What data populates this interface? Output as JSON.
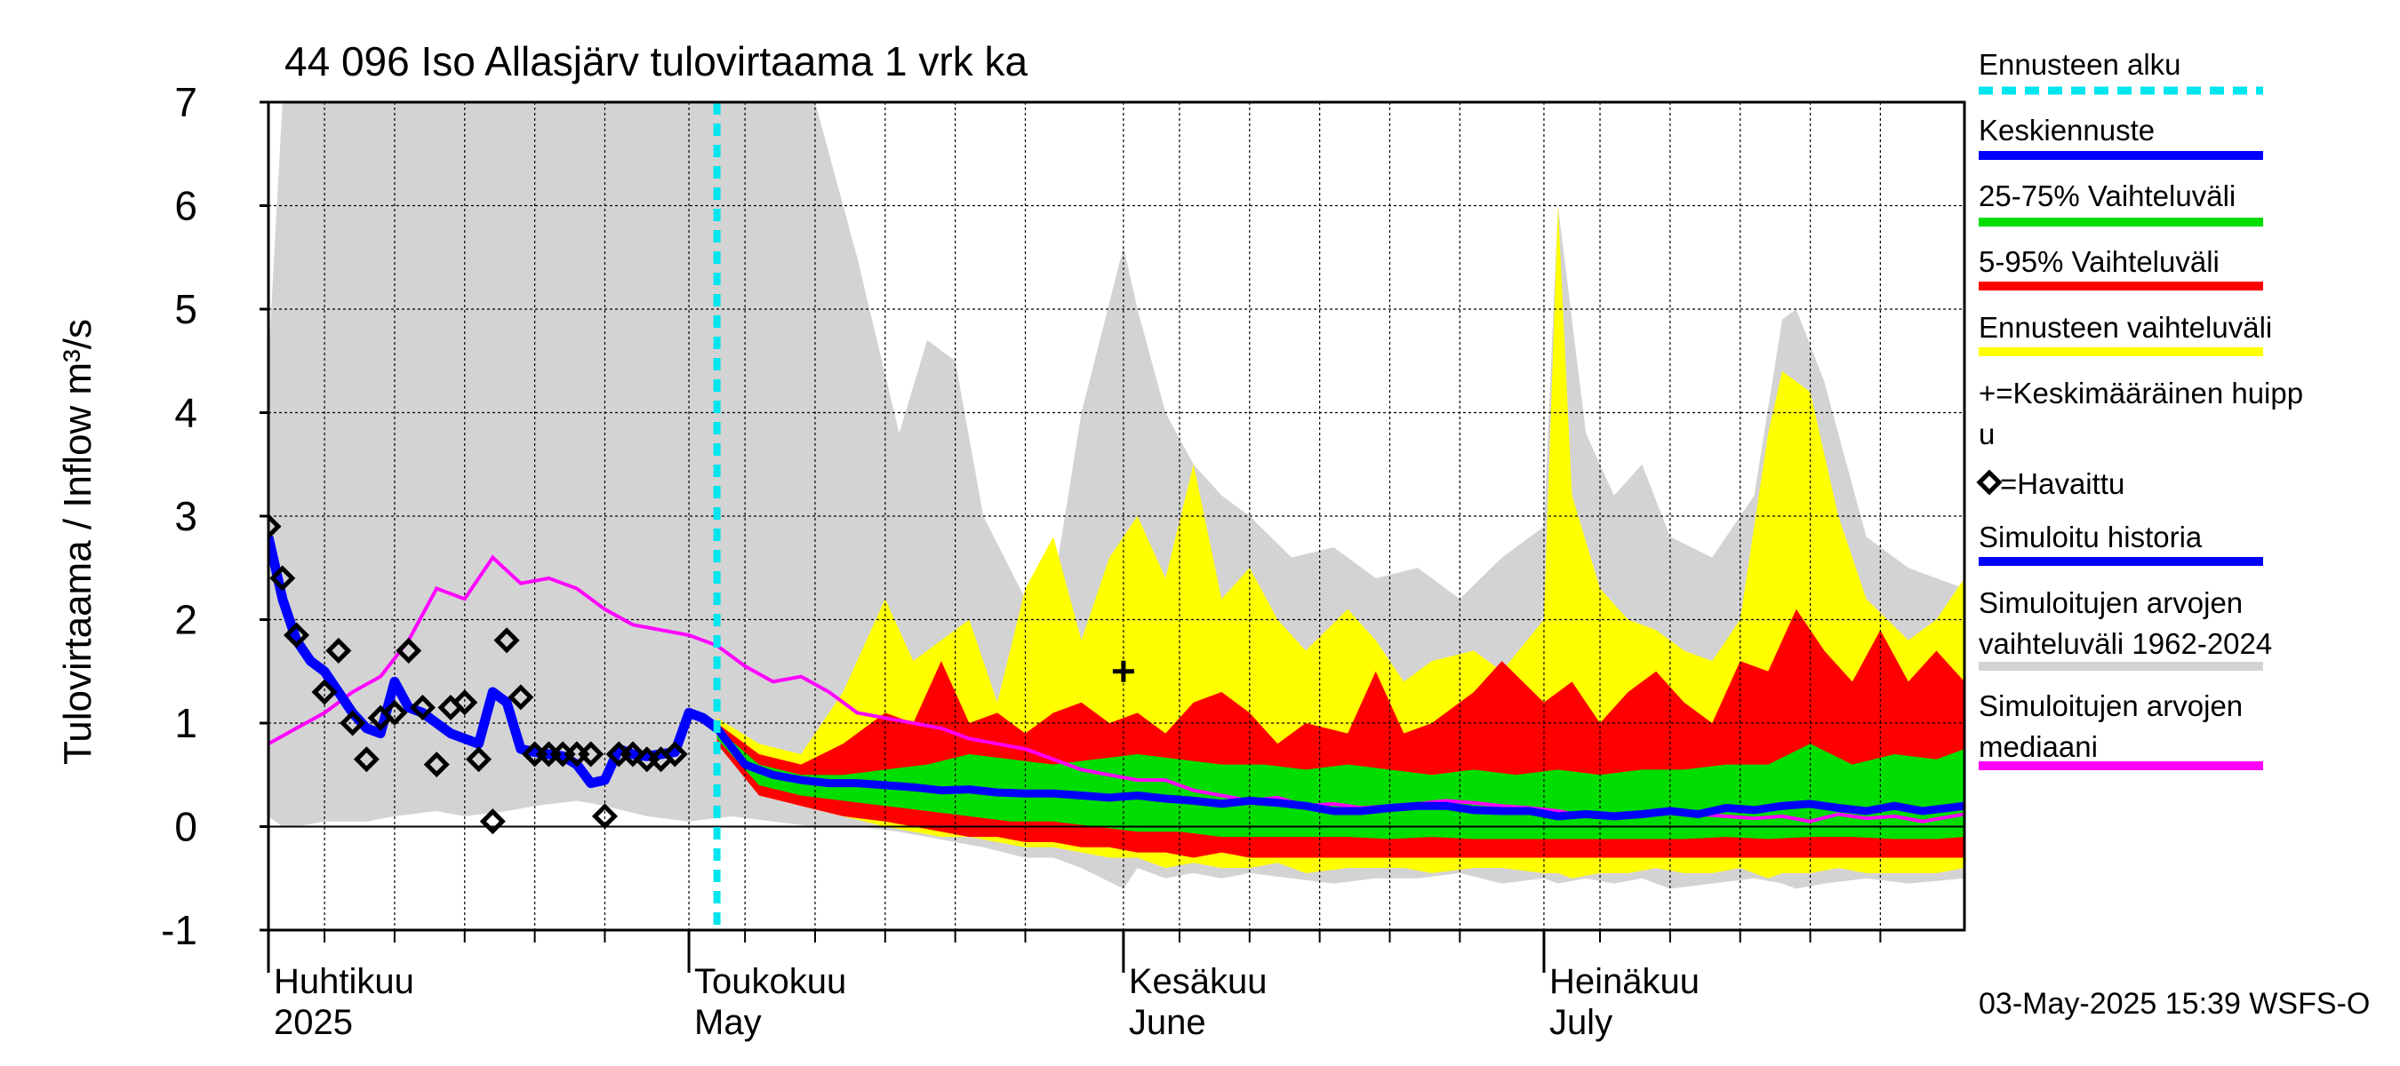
{
  "chart_data": {
    "type": "area",
    "title": "44 096 Iso Allasjärv tulovirtaama 1 vrk ka",
    "ylabel": "Tulovirtaama / Inflow    m³/s",
    "ylim": [
      -1,
      7
    ],
    "y_ticks": [
      -1,
      0,
      1,
      2,
      3,
      4,
      5,
      6,
      7
    ],
    "x_range": [
      "2025-04-01",
      "2025-07-31"
    ],
    "x_grid_dates": [
      "2025-04-05",
      "2025-04-10",
      "2025-04-15",
      "2025-04-20",
      "2025-04-25",
      "2025-05-01",
      "2025-05-05",
      "2025-05-10",
      "2025-05-15",
      "2025-05-20",
      "2025-05-25",
      "2025-06-01",
      "2025-06-05",
      "2025-06-10",
      "2025-06-15",
      "2025-06-20",
      "2025-06-25",
      "2025-07-01",
      "2025-07-05",
      "2025-07-10",
      "2025-07-15",
      "2025-07-20",
      "2025-07-25"
    ],
    "month_labels": [
      {
        "fi": "Huhtikuu",
        "en": "2025",
        "date": "2025-04-01"
      },
      {
        "fi": "Toukokuu",
        "en": "May",
        "date": "2025-05-01"
      },
      {
        "fi": "Kesäkuu",
        "en": "June",
        "date": "2025-06-01"
      },
      {
        "fi": "Heinäkuu",
        "en": "July",
        "date": "2025-07-01"
      }
    ],
    "forecast_start": "2025-05-03",
    "grid": true,
    "legend_position": "right",
    "legend": [
      {
        "label": "Ennusteen alku",
        "color": "#00e5ee",
        "style": "dashed"
      },
      {
        "label": "Keskiennuste",
        "color": "#0000ff",
        "style": "line"
      },
      {
        "label": "25-75% Vaihteluväli",
        "color": "#00dd00",
        "style": "line"
      },
      {
        "label": "5-95% Vaihteluväli",
        "color": "#ff0000",
        "style": "line"
      },
      {
        "label": "Ennusteen vaihteluväli",
        "color": "#ffff00",
        "style": "line"
      },
      {
        "label": "+=Keskimääräinen huipp",
        "label2": "u",
        "color": "#000000",
        "style": "none"
      },
      {
        "label": "=Havaittu",
        "color": "#000000",
        "style": "diamond"
      },
      {
        "label": "Simuloitu historia",
        "color": "#0000ff",
        "style": "line"
      },
      {
        "label": "Simuloitujen arvojen",
        "label2": "vaihteluväli 1962-2024",
        "color": "#d3d3d3",
        "style": "line"
      },
      {
        "label": "Simuloitujen arvojen",
        "label2": "mediaani",
        "color": "#ff00ff",
        "style": "line"
      }
    ],
    "footer": "03-May-2025 15:39 WSFS-O",
    "colors": {
      "history_range": "#d3d3d3",
      "forecast_range": "#ffff00",
      "p5_95": "#ff0000",
      "p25_75": "#00dd00",
      "mean_forecast": "#0000ff",
      "simulated_history": "#0000ff",
      "median": "#ff00ff",
      "forecast_start": "#00e5ee"
    },
    "series": {
      "history_range": {
        "x": [
          "2025-04-01",
          "2025-04-02",
          "2025-04-03",
          "2025-04-05",
          "2025-04-08",
          "2025-04-10",
          "2025-04-13",
          "2025-04-15",
          "2025-04-18",
          "2025-04-20",
          "2025-04-23",
          "2025-04-25",
          "2025-04-28",
          "2025-05-01",
          "2025-05-04",
          "2025-05-07",
          "2025-05-10",
          "2025-05-13",
          "2025-05-16",
          "2025-05-18",
          "2025-05-20",
          "2025-05-22",
          "2025-05-25",
          "2025-05-27",
          "2025-05-29",
          "2025-06-01",
          "2025-06-02",
          "2025-06-04",
          "2025-06-06",
          "2025-06-08",
          "2025-06-10",
          "2025-06-13",
          "2025-06-16",
          "2025-06-19",
          "2025-06-22",
          "2025-06-25",
          "2025-06-28",
          "2025-07-01",
          "2025-07-02",
          "2025-07-04",
          "2025-07-06",
          "2025-07-08",
          "2025-07-10",
          "2025-07-13",
          "2025-07-16",
          "2025-07-18",
          "2025-07-19",
          "2025-07-21",
          "2025-07-24",
          "2025-07-27",
          "2025-07-31"
        ],
        "high": [
          4.5,
          7,
          7,
          7,
          7,
          7,
          7,
          7,
          7,
          7,
          7,
          7,
          7,
          7,
          7,
          7,
          7,
          5.5,
          3.8,
          4.7,
          4.5,
          3.0,
          2.2,
          2.3,
          4.0,
          5.6,
          5.0,
          4.0,
          3.5,
          3.2,
          3.0,
          2.6,
          2.7,
          2.4,
          2.5,
          2.2,
          2.6,
          2.9,
          6.0,
          3.8,
          3.2,
          3.5,
          2.8,
          2.6,
          3.2,
          4.9,
          5.0,
          4.3,
          2.8,
          2.5,
          2.3
        ],
        "low": [
          0.1,
          0.0,
          0.0,
          0.05,
          0.05,
          0.1,
          0.15,
          0.1,
          0.15,
          0.2,
          0.25,
          0.2,
          0.1,
          0.05,
          0.1,
          0.05,
          0.0,
          0.0,
          -0.05,
          -0.1,
          -0.15,
          -0.2,
          -0.3,
          -0.3,
          -0.4,
          -0.6,
          -0.4,
          -0.5,
          -0.45,
          -0.5,
          -0.45,
          -0.5,
          -0.55,
          -0.5,
          -0.5,
          -0.45,
          -0.55,
          -0.5,
          -0.55,
          -0.5,
          -0.55,
          -0.5,
          -0.6,
          -0.55,
          -0.5,
          -0.55,
          -0.6,
          -0.55,
          -0.5,
          -0.55,
          -0.5
        ]
      },
      "forecast_range": {
        "x": [
          "2025-05-03",
          "2025-05-06",
          "2025-05-09",
          "2025-05-12",
          "2025-05-15",
          "2025-05-17",
          "2025-05-19",
          "2025-05-21",
          "2025-05-23",
          "2025-05-25",
          "2025-05-27",
          "2025-05-29",
          "2025-05-31",
          "2025-06-02",
          "2025-06-04",
          "2025-06-06",
          "2025-06-08",
          "2025-06-10",
          "2025-06-12",
          "2025-06-14",
          "2025-06-17",
          "2025-06-19",
          "2025-06-21",
          "2025-06-23",
          "2025-06-26",
          "2025-06-28",
          "2025-07-01",
          "2025-07-02",
          "2025-07-03",
          "2025-07-05",
          "2025-07-07",
          "2025-07-09",
          "2025-07-11",
          "2025-07-13",
          "2025-07-15",
          "2025-07-17",
          "2025-07-18",
          "2025-07-20",
          "2025-07-22",
          "2025-07-24",
          "2025-07-27",
          "2025-07-29",
          "2025-07-31"
        ],
        "high": [
          1.05,
          0.8,
          0.7,
          1.3,
          2.2,
          1.6,
          1.8,
          2.0,
          1.2,
          2.3,
          2.8,
          1.8,
          2.6,
          3.0,
          2.4,
          3.5,
          2.2,
          2.5,
          2.0,
          1.7,
          2.1,
          1.8,
          1.4,
          1.6,
          1.7,
          1.5,
          2.0,
          6.0,
          3.2,
          2.3,
          2.0,
          1.9,
          1.7,
          1.6,
          2.0,
          3.8,
          4.4,
          4.2,
          3.0,
          2.2,
          1.8,
          2.0,
          2.4
        ],
        "low": [
          0.9,
          0.3,
          0.2,
          0.1,
          0.0,
          -0.05,
          -0.1,
          -0.1,
          -0.15,
          -0.2,
          -0.2,
          -0.25,
          -0.3,
          -0.3,
          -0.4,
          -0.35,
          -0.4,
          -0.4,
          -0.35,
          -0.45,
          -0.4,
          -0.4,
          -0.4,
          -0.45,
          -0.4,
          -0.4,
          -0.45,
          -0.45,
          -0.5,
          -0.45,
          -0.45,
          -0.4,
          -0.45,
          -0.45,
          -0.4,
          -0.5,
          -0.45,
          -0.45,
          -0.4,
          -0.45,
          -0.45,
          -0.45,
          -0.4
        ]
      },
      "p5_95": {
        "x": [
          "2025-05-03",
          "2025-05-06",
          "2025-05-09",
          "2025-05-12",
          "2025-05-15",
          "2025-05-17",
          "2025-05-19",
          "2025-05-21",
          "2025-05-23",
          "2025-05-25",
          "2025-05-27",
          "2025-05-29",
          "2025-05-31",
          "2025-06-02",
          "2025-06-04",
          "2025-06-06",
          "2025-06-08",
          "2025-06-10",
          "2025-06-12",
          "2025-06-14",
          "2025-06-17",
          "2025-06-19",
          "2025-06-21",
          "2025-06-23",
          "2025-06-26",
          "2025-06-28",
          "2025-07-01",
          "2025-07-03",
          "2025-07-05",
          "2025-07-07",
          "2025-07-09",
          "2025-07-11",
          "2025-07-13",
          "2025-07-15",
          "2025-07-17",
          "2025-07-19",
          "2025-07-21",
          "2025-07-23",
          "2025-07-25",
          "2025-07-27",
          "2025-07-29",
          "2025-07-31"
        ],
        "high": [
          1.0,
          0.7,
          0.6,
          0.8,
          1.1,
          1.0,
          1.6,
          1.0,
          1.1,
          0.9,
          1.1,
          1.2,
          1.0,
          1.1,
          0.9,
          1.2,
          1.3,
          1.1,
          0.8,
          1.0,
          0.9,
          1.5,
          0.9,
          1.0,
          1.3,
          1.6,
          1.2,
          1.4,
          1.0,
          1.3,
          1.5,
          1.2,
          1.0,
          1.6,
          1.5,
          2.1,
          1.7,
          1.4,
          1.9,
          1.4,
          1.7,
          1.4
        ],
        "low": [
          0.8,
          0.3,
          0.2,
          0.1,
          0.05,
          0.0,
          -0.05,
          -0.1,
          -0.1,
          -0.15,
          -0.15,
          -0.2,
          -0.2,
          -0.25,
          -0.25,
          -0.3,
          -0.25,
          -0.3,
          -0.3,
          -0.3,
          -0.3,
          -0.3,
          -0.3,
          -0.3,
          -0.3,
          -0.3,
          -0.3,
          -0.3,
          -0.3,
          -0.3,
          -0.3,
          -0.3,
          -0.3,
          -0.3,
          -0.3,
          -0.3,
          -0.3,
          -0.3,
          -0.3,
          -0.3,
          -0.3,
          -0.3
        ]
      },
      "p25_75": {
        "x": [
          "2025-05-03",
          "2025-05-06",
          "2025-05-09",
          "2025-05-12",
          "2025-05-15",
          "2025-05-18",
          "2025-05-21",
          "2025-05-24",
          "2025-05-27",
          "2025-05-30",
          "2025-06-02",
          "2025-06-05",
          "2025-06-08",
          "2025-06-11",
          "2025-06-14",
          "2025-06-17",
          "2025-06-20",
          "2025-06-23",
          "2025-06-26",
          "2025-06-29",
          "2025-07-02",
          "2025-07-05",
          "2025-07-08",
          "2025-07-11",
          "2025-07-14",
          "2025-07-17",
          "2025-07-20",
          "2025-07-23",
          "2025-07-26",
          "2025-07-29",
          "2025-07-31"
        ],
        "high": [
          0.95,
          0.6,
          0.5,
          0.5,
          0.55,
          0.6,
          0.7,
          0.65,
          0.6,
          0.65,
          0.7,
          0.65,
          0.6,
          0.6,
          0.55,
          0.6,
          0.55,
          0.5,
          0.55,
          0.5,
          0.55,
          0.5,
          0.55,
          0.55,
          0.6,
          0.6,
          0.8,
          0.6,
          0.7,
          0.65,
          0.75
        ],
        "low": [
          0.85,
          0.4,
          0.3,
          0.25,
          0.2,
          0.15,
          0.1,
          0.05,
          0.05,
          0.0,
          -0.05,
          -0.05,
          -0.1,
          -0.1,
          -0.1,
          -0.1,
          -0.12,
          -0.1,
          -0.12,
          -0.12,
          -0.12,
          -0.12,
          -0.12,
          -0.12,
          -0.1,
          -0.12,
          -0.1,
          -0.1,
          -0.12,
          -0.12,
          -0.1
        ]
      },
      "median": {
        "x": [
          "2025-04-01",
          "2025-04-03",
          "2025-04-05",
          "2025-04-07",
          "2025-04-09",
          "2025-04-11",
          "2025-04-13",
          "2025-04-15",
          "2025-04-17",
          "2025-04-19",
          "2025-04-21",
          "2025-04-23",
          "2025-04-25",
          "2025-04-27",
          "2025-04-29",
          "2025-05-01",
          "2025-05-03",
          "2025-05-05",
          "2025-05-07",
          "2025-05-09",
          "2025-05-11",
          "2025-05-13",
          "2025-05-15",
          "2025-05-17",
          "2025-05-19",
          "2025-05-21",
          "2025-05-23",
          "2025-05-25",
          "2025-05-27",
          "2025-05-29",
          "2025-05-31",
          "2025-06-02",
          "2025-06-04",
          "2025-06-06",
          "2025-06-08",
          "2025-06-10",
          "2025-06-12",
          "2025-06-14",
          "2025-06-16",
          "2025-06-18",
          "2025-06-20",
          "2025-06-22",
          "2025-06-24",
          "2025-06-26",
          "2025-06-28",
          "2025-06-30",
          "2025-07-02",
          "2025-07-04",
          "2025-07-06",
          "2025-07-08",
          "2025-07-10",
          "2025-07-12",
          "2025-07-14",
          "2025-07-16",
          "2025-07-18",
          "2025-07-20",
          "2025-07-22",
          "2025-07-24",
          "2025-07-26",
          "2025-07-28",
          "2025-07-31"
        ],
        "values": [
          0.8,
          0.95,
          1.1,
          1.3,
          1.45,
          1.8,
          2.3,
          2.2,
          2.6,
          2.35,
          2.4,
          2.3,
          2.1,
          1.95,
          1.9,
          1.85,
          1.75,
          1.55,
          1.4,
          1.45,
          1.3,
          1.1,
          1.05,
          1.0,
          0.95,
          0.85,
          0.8,
          0.75,
          0.65,
          0.55,
          0.5,
          0.45,
          0.45,
          0.35,
          0.3,
          0.25,
          0.28,
          0.2,
          0.22,
          0.18,
          0.2,
          0.22,
          0.25,
          0.23,
          0.2,
          0.18,
          0.15,
          0.1,
          0.12,
          0.1,
          0.15,
          0.12,
          0.1,
          0.08,
          0.1,
          0.05,
          0.12,
          0.08,
          0.1,
          0.05,
          0.12
        ]
      },
      "simulated_history": {
        "x": [
          "2025-04-01",
          "2025-04-02",
          "2025-04-03",
          "2025-04-04",
          "2025-04-05",
          "2025-04-06",
          "2025-04-07",
          "2025-04-08",
          "2025-04-09",
          "2025-04-10",
          "2025-04-11",
          "2025-04-12",
          "2025-04-13",
          "2025-04-14",
          "2025-04-15",
          "2025-04-16",
          "2025-04-17",
          "2025-04-18",
          "2025-04-19",
          "2025-04-20",
          "2025-04-21",
          "2025-04-22",
          "2025-04-23",
          "2025-04-24",
          "2025-04-25",
          "2025-04-26",
          "2025-04-27",
          "2025-04-28",
          "2025-04-29",
          "2025-04-30",
          "2025-05-01",
          "2025-05-02",
          "2025-05-03"
        ],
        "values": [
          2.8,
          2.2,
          1.8,
          1.6,
          1.5,
          1.3,
          1.1,
          0.95,
          0.9,
          1.4,
          1.15,
          1.1,
          1.0,
          0.9,
          0.85,
          0.8,
          1.3,
          1.2,
          0.75,
          0.72,
          0.7,
          0.68,
          0.6,
          0.42,
          0.45,
          0.75,
          0.7,
          0.68,
          0.7,
          0.72,
          1.1,
          1.05,
          0.95
        ]
      },
      "mean_forecast": {
        "x": [
          "2025-05-03",
          "2025-05-05",
          "2025-05-07",
          "2025-05-09",
          "2025-05-11",
          "2025-05-13",
          "2025-05-15",
          "2025-05-17",
          "2025-05-19",
          "2025-05-21",
          "2025-05-23",
          "2025-05-25",
          "2025-05-27",
          "2025-05-29",
          "2025-05-31",
          "2025-06-02",
          "2025-06-04",
          "2025-06-06",
          "2025-06-08",
          "2025-06-10",
          "2025-06-12",
          "2025-06-14",
          "2025-06-16",
          "2025-06-18",
          "2025-06-20",
          "2025-06-22",
          "2025-06-24",
          "2025-06-26",
          "2025-06-28",
          "2025-06-30",
          "2025-07-02",
          "2025-07-04",
          "2025-07-06",
          "2025-07-08",
          "2025-07-10",
          "2025-07-12",
          "2025-07-14",
          "2025-07-16",
          "2025-07-18",
          "2025-07-20",
          "2025-07-22",
          "2025-07-24",
          "2025-07-26",
          "2025-07-28",
          "2025-07-31"
        ],
        "values": [
          0.95,
          0.6,
          0.5,
          0.45,
          0.42,
          0.42,
          0.4,
          0.38,
          0.35,
          0.36,
          0.33,
          0.32,
          0.32,
          0.3,
          0.28,
          0.3,
          0.27,
          0.25,
          0.22,
          0.25,
          0.23,
          0.2,
          0.15,
          0.15,
          0.18,
          0.2,
          0.2,
          0.16,
          0.15,
          0.15,
          0.1,
          0.12,
          0.1,
          0.12,
          0.15,
          0.12,
          0.18,
          0.16,
          0.2,
          0.22,
          0.18,
          0.15,
          0.2,
          0.15,
          0.2
        ]
      },
      "observed": {
        "x": [
          "2025-04-01",
          "2025-04-02",
          "2025-04-03",
          "2025-04-05",
          "2025-04-06",
          "2025-04-07",
          "2025-04-08",
          "2025-04-09",
          "2025-04-10",
          "2025-04-11",
          "2025-04-12",
          "2025-04-13",
          "2025-04-14",
          "2025-04-15",
          "2025-04-16",
          "2025-04-17",
          "2025-04-18",
          "2025-04-19",
          "2025-04-20",
          "2025-04-21",
          "2025-04-22",
          "2025-04-23",
          "2025-04-24",
          "2025-04-25",
          "2025-04-26",
          "2025-04-27",
          "2025-04-28",
          "2025-04-29",
          "2025-04-30"
        ],
        "values": [
          2.9,
          2.4,
          1.85,
          1.3,
          1.7,
          1.0,
          0.65,
          1.05,
          1.1,
          1.7,
          1.15,
          0.6,
          1.15,
          1.2,
          0.65,
          0.05,
          1.8,
          1.25,
          0.7,
          0.7,
          0.7,
          0.7,
          0.7,
          0.1,
          0.7,
          0.7,
          0.65,
          0.65,
          0.7
        ]
      },
      "avg_peak": {
        "x": "2025-06-01",
        "value": 1.5
      }
    }
  }
}
